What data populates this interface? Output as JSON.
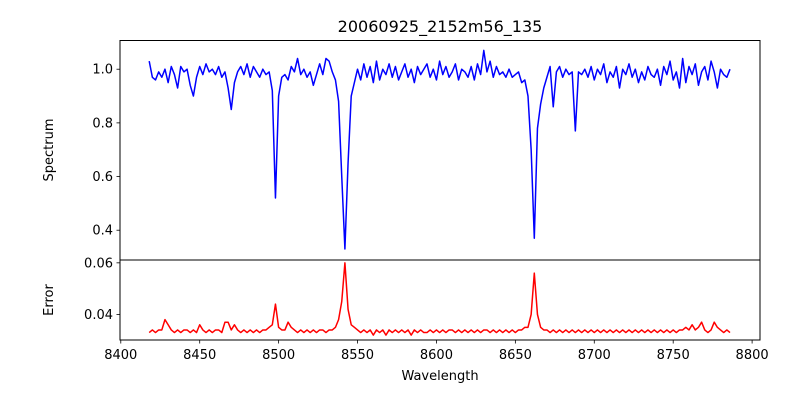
{
  "chart_data": [
    {
      "type": "line",
      "title": "20060925_2152m56_135",
      "xlabel": "",
      "ylabel": "Spectrum",
      "xlim": [
        8399.5,
        8805
      ],
      "ylim": [
        0.289,
        1.107
      ],
      "xticks": [
        "8400",
        "8450",
        "8500",
        "8550",
        "8600",
        "8650",
        "8700",
        "8750",
        "8800"
      ],
      "yticks": [
        {
          "value": 0.4,
          "label": "0.4"
        },
        {
          "value": 0.6,
          "label": "0.6"
        },
        {
          "value": 0.8,
          "label": "0.8"
        },
        {
          "value": 1.0,
          "label": "1.0"
        }
      ],
      "x_start": 8418,
      "x_step": 2,
      "series": [
        {
          "name": "Spectrum",
          "color": "#0000ff",
          "values": [
            1.03,
            0.97,
            0.96,
            0.99,
            0.97,
            1.0,
            0.95,
            1.01,
            0.98,
            0.93,
            1.01,
            0.99,
            1.0,
            0.94,
            0.9,
            0.97,
            1.01,
            0.98,
            1.02,
            0.99,
            1.0,
            0.98,
            1.01,
            0.97,
            0.99,
            0.93,
            0.85,
            0.95,
            0.99,
            1.01,
            0.98,
            1.02,
            0.97,
            1.01,
            0.99,
            0.97,
            1.0,
            0.98,
            0.99,
            0.92,
            0.52,
            0.9,
            0.97,
            0.98,
            0.96,
            1.01,
            0.99,
            1.04,
            0.98,
            1.0,
            0.97,
            0.99,
            0.94,
            0.98,
            1.02,
            0.98,
            1.04,
            1.03,
            0.99,
            0.96,
            0.88,
            0.6,
            0.33,
            0.65,
            0.9,
            0.95,
            1.0,
            0.96,
            1.02,
            0.97,
            1.01,
            0.95,
            1.03,
            0.96,
            1.0,
            0.98,
            1.02,
            0.97,
            1.01,
            0.96,
            0.99,
            1.02,
            0.97,
            1.0,
            0.95,
            1.01,
            0.98,
            1.0,
            1.02,
            0.97,
            1.0,
            0.96,
            1.03,
            0.98,
            1.01,
            0.97,
            0.99,
            1.02,
            0.96,
            1.0,
            0.99,
            0.97,
            1.01,
            0.96,
            1.02,
            0.98,
            1.07,
            0.99,
            1.03,
            0.97,
            1.01,
            0.98,
            0.99,
            0.97,
            1.0,
            0.97,
            0.98,
            0.99,
            0.95,
            0.96,
            0.9,
            0.7,
            0.37,
            0.78,
            0.87,
            0.93,
            0.97,
            1.01,
            0.86,
            0.99,
            1.01,
            0.97,
            1.0,
            0.98,
            0.99,
            0.77,
            0.99,
            0.98,
            1.0,
            0.97,
            1.01,
            0.96,
            1.0,
            0.98,
            1.02,
            0.95,
            0.99,
            0.97,
            1.01,
            0.93,
            1.0,
            0.98,
            1.02,
            0.97,
            1.0,
            0.95,
            0.99,
            0.96,
            1.01,
            0.98,
            0.97,
            1.0,
            0.94,
            1.01,
            0.98,
            1.03,
            0.96,
            0.99,
            0.93,
            1.04,
            0.95,
            1.01,
            0.98,
            1.02,
            0.94,
            0.99,
            1.01,
            0.96,
            1.03,
            0.99,
            0.93,
            1.0,
            0.98,
            0.97,
            1.0
          ]
        }
      ]
    },
    {
      "type": "line",
      "title": "",
      "xlabel": "Wavelength",
      "ylabel": "Error",
      "xlim": [
        8399.5,
        8805
      ],
      "ylim": [
        0.0301,
        0.0611
      ],
      "xticks": [
        "8400",
        "8450",
        "8500",
        "8550",
        "8600",
        "8650",
        "8700",
        "8750",
        "8800"
      ],
      "yticks": [
        {
          "value": 0.04,
          "label": "0.04"
        },
        {
          "value": 0.06,
          "label": "0.06"
        }
      ],
      "x_start": 8418,
      "x_step": 2,
      "series": [
        {
          "name": "Error",
          "color": "#ff0000",
          "values": [
            0.033,
            0.034,
            0.033,
            0.034,
            0.034,
            0.038,
            0.036,
            0.034,
            0.033,
            0.034,
            0.033,
            0.034,
            0.034,
            0.033,
            0.034,
            0.033,
            0.036,
            0.034,
            0.033,
            0.034,
            0.033,
            0.034,
            0.034,
            0.033,
            0.037,
            0.037,
            0.034,
            0.036,
            0.034,
            0.033,
            0.034,
            0.033,
            0.034,
            0.033,
            0.034,
            0.033,
            0.034,
            0.034,
            0.035,
            0.036,
            0.044,
            0.035,
            0.034,
            0.034,
            0.037,
            0.035,
            0.034,
            0.033,
            0.034,
            0.033,
            0.034,
            0.033,
            0.034,
            0.033,
            0.034,
            0.034,
            0.033,
            0.034,
            0.034,
            0.035,
            0.038,
            0.045,
            0.06,
            0.042,
            0.036,
            0.035,
            0.034,
            0.033,
            0.034,
            0.033,
            0.034,
            0.032,
            0.034,
            0.033,
            0.034,
            0.032,
            0.034,
            0.033,
            0.034,
            0.033,
            0.034,
            0.033,
            0.034,
            0.032,
            0.034,
            0.033,
            0.034,
            0.033,
            0.033,
            0.034,
            0.033,
            0.034,
            0.033,
            0.034,
            0.033,
            0.034,
            0.034,
            0.033,
            0.034,
            0.033,
            0.034,
            0.033,
            0.034,
            0.033,
            0.034,
            0.033,
            0.034,
            0.034,
            0.033,
            0.034,
            0.033,
            0.034,
            0.033,
            0.034,
            0.033,
            0.034,
            0.033,
            0.034,
            0.034,
            0.035,
            0.035,
            0.04,
            0.056,
            0.04,
            0.035,
            0.034,
            0.034,
            0.033,
            0.034,
            0.033,
            0.034,
            0.033,
            0.034,
            0.033,
            0.034,
            0.033,
            0.034,
            0.033,
            0.034,
            0.033,
            0.034,
            0.033,
            0.034,
            0.033,
            0.034,
            0.033,
            0.034,
            0.033,
            0.034,
            0.033,
            0.034,
            0.033,
            0.034,
            0.033,
            0.034,
            0.033,
            0.034,
            0.033,
            0.034,
            0.033,
            0.034,
            0.033,
            0.034,
            0.033,
            0.034,
            0.033,
            0.034,
            0.033,
            0.034,
            0.034,
            0.035,
            0.034,
            0.036,
            0.034,
            0.035,
            0.037,
            0.034,
            0.033,
            0.034,
            0.037,
            0.035,
            0.034,
            0.033,
            0.034,
            0.033
          ]
        }
      ]
    }
  ]
}
